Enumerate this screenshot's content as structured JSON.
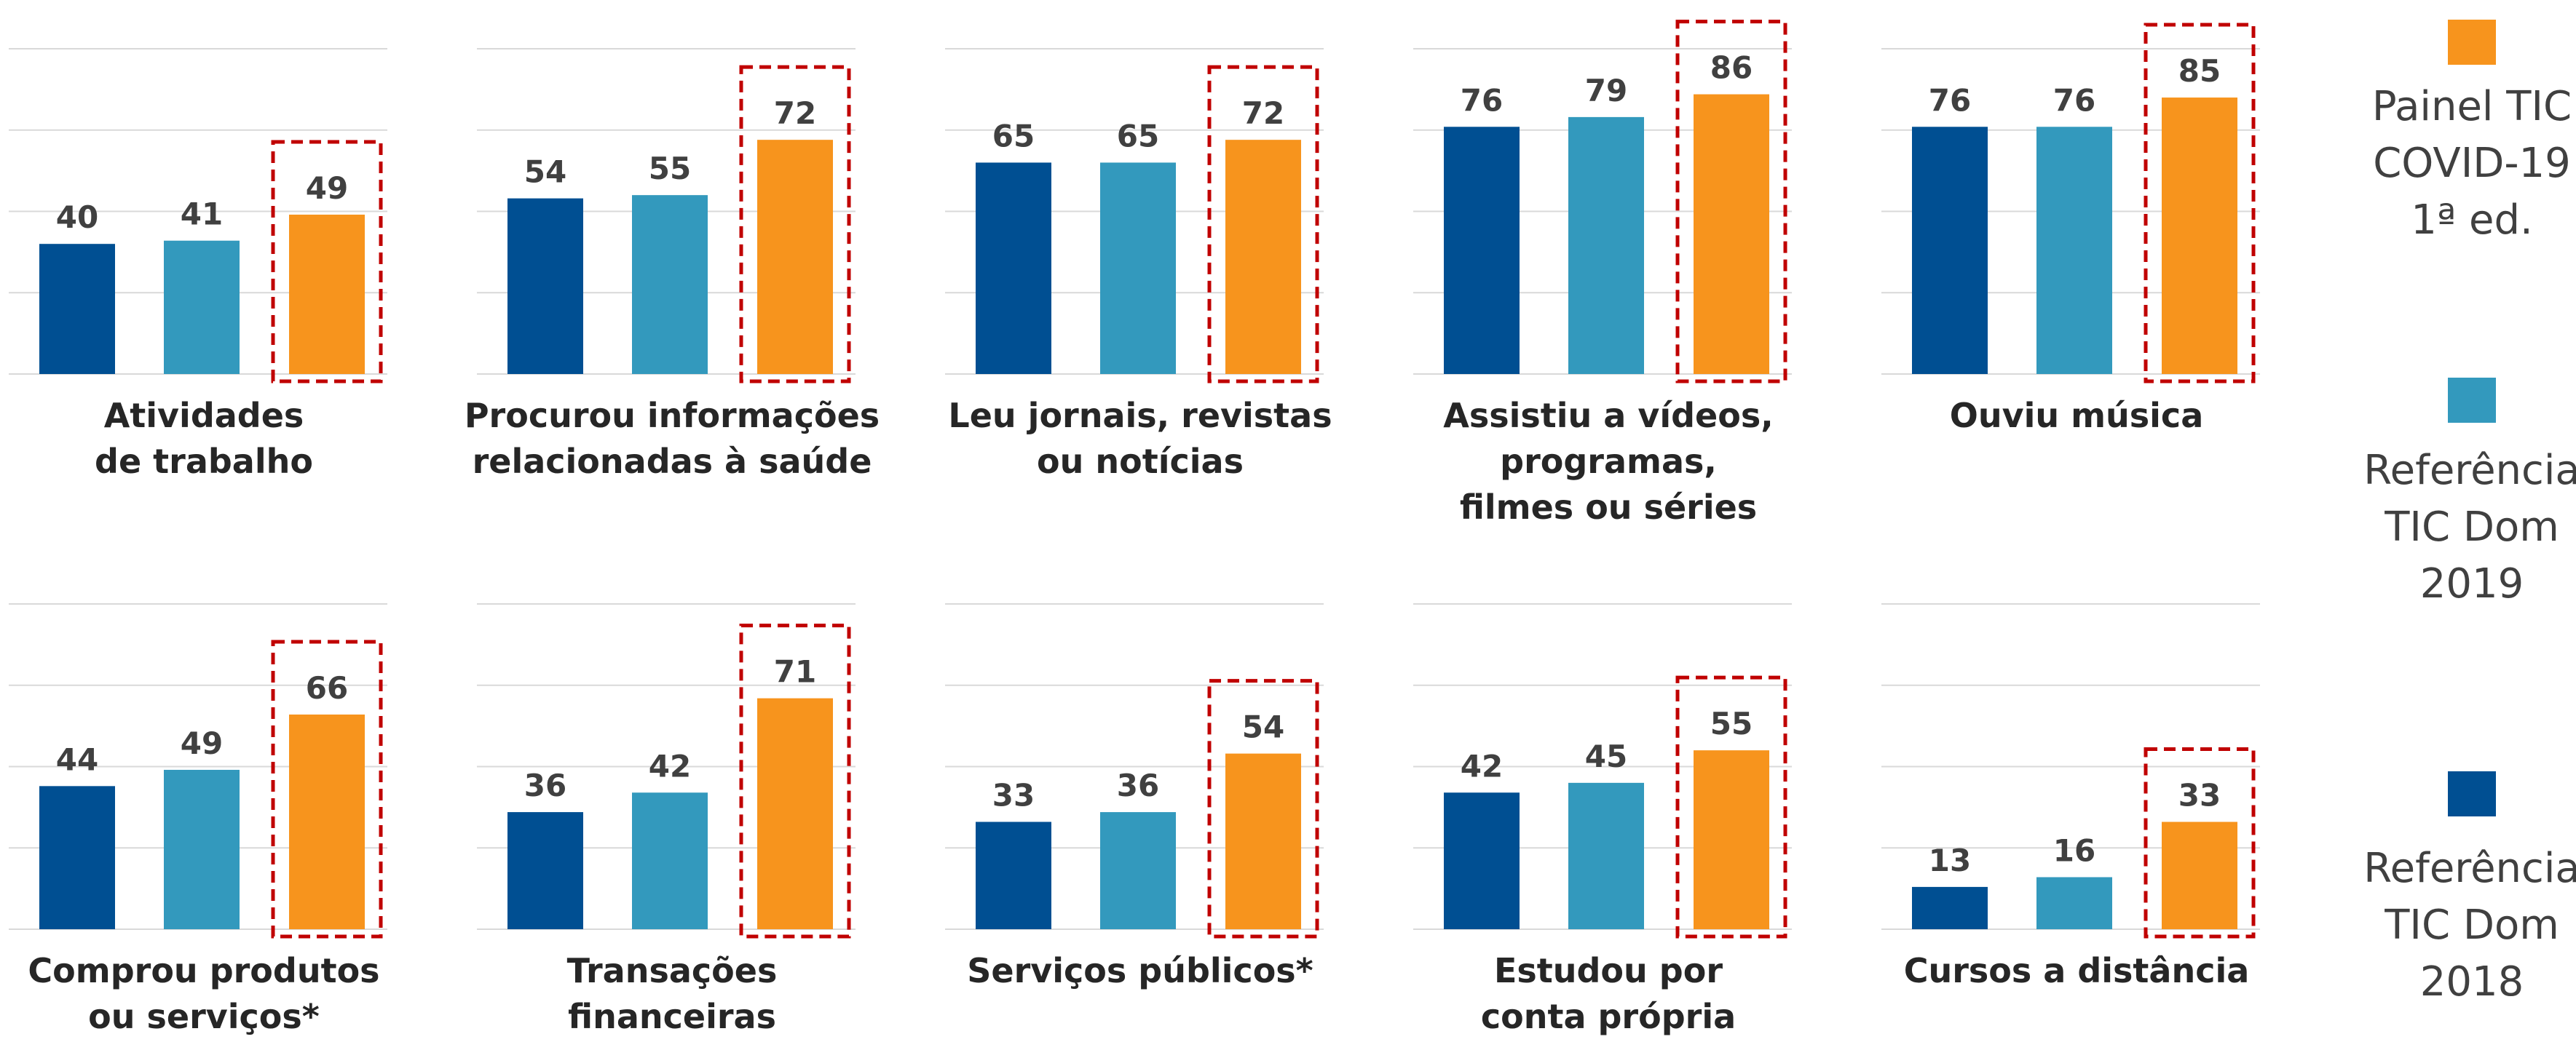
{
  "legend": {
    "items": [
      {
        "name": [
          "Painel TIC",
          "COVID-19",
          "1ª ed."
        ],
        "color": "#f7941d"
      },
      {
        "name": [
          "Referência",
          "TIC Dom",
          "2019"
        ],
        "color": "#3399bd"
      },
      {
        "name": [
          "Referência",
          "TIC Dom",
          "2018"
        ],
        "color": "#004f92"
      }
    ]
  },
  "chart_data": [
    {
      "type": "bar",
      "title": [
        "Atividades",
        "de trabalho"
      ],
      "values": [
        40,
        41,
        49
      ],
      "colors": [
        "#004f92",
        "#3399bd",
        "#f7941d"
      ],
      "highlight": {
        "index": 2,
        "color": "#c00000"
      },
      "ylim": [
        0,
        100
      ],
      "yticks": [
        0,
        25,
        50,
        75,
        100
      ],
      "grid": true
    },
    {
      "type": "bar",
      "title": [
        "Procurou informações",
        "relacionadas à saúde"
      ],
      "values": [
        54,
        55,
        72
      ],
      "colors": [
        "#004f92",
        "#3399bd",
        "#f7941d"
      ],
      "highlight": {
        "index": 2,
        "color": "#c00000"
      },
      "ylim": [
        0,
        100
      ],
      "yticks": [
        0,
        25,
        50,
        75,
        100
      ],
      "grid": true
    },
    {
      "type": "bar",
      "title": [
        "Leu jornais, revistas",
        "ou notícias"
      ],
      "values": [
        65,
        65,
        72
      ],
      "colors": [
        "#004f92",
        "#3399bd",
        "#f7941d"
      ],
      "highlight": {
        "index": 2,
        "color": "#c00000"
      },
      "ylim": [
        0,
        100
      ],
      "yticks": [
        0,
        25,
        50,
        75,
        100
      ],
      "grid": true
    },
    {
      "type": "bar",
      "title": [
        "Assistiu a vídeos,",
        "programas,",
        "filmes ou séries"
      ],
      "values": [
        76,
        79,
        86
      ],
      "colors": [
        "#004f92",
        "#3399bd",
        "#f7941d"
      ],
      "highlight": {
        "index": 2,
        "color": "#c00000"
      },
      "ylim": [
        0,
        100
      ],
      "yticks": [
        0,
        25,
        50,
        75,
        100
      ],
      "grid": true
    },
    {
      "type": "bar",
      "title": [
        "Ouviu música"
      ],
      "values": [
        76,
        76,
        85
      ],
      "colors": [
        "#004f92",
        "#3399bd",
        "#f7941d"
      ],
      "highlight": {
        "index": 2,
        "color": "#c00000"
      },
      "ylim": [
        0,
        100
      ],
      "yticks": [
        0,
        25,
        50,
        75,
        100
      ],
      "grid": true
    },
    {
      "type": "bar",
      "title": [
        "Comprou produtos",
        "ou serviços*"
      ],
      "values": [
        44,
        49,
        66
      ],
      "colors": [
        "#004f92",
        "#3399bd",
        "#f7941d"
      ],
      "highlight": {
        "index": 2,
        "color": "#c00000"
      },
      "ylim": [
        0,
        100
      ],
      "yticks": [
        0,
        25,
        50,
        75,
        100
      ],
      "grid": true
    },
    {
      "type": "bar",
      "title": [
        "Transações",
        "financeiras"
      ],
      "values": [
        36,
        42,
        71
      ],
      "colors": [
        "#004f92",
        "#3399bd",
        "#f7941d"
      ],
      "highlight": {
        "index": 2,
        "color": "#c00000"
      },
      "ylim": [
        0,
        100
      ],
      "yticks": [
        0,
        25,
        50,
        75,
        100
      ],
      "grid": true
    },
    {
      "type": "bar",
      "title": [
        "Serviços públicos*"
      ],
      "values": [
        33,
        36,
        54
      ],
      "colors": [
        "#004f92",
        "#3399bd",
        "#f7941d"
      ],
      "highlight": {
        "index": 2,
        "color": "#c00000"
      },
      "ylim": [
        0,
        100
      ],
      "yticks": [
        0,
        25,
        50,
        75,
        100
      ],
      "grid": true
    },
    {
      "type": "bar",
      "title": [
        "Estudou por",
        "conta própria"
      ],
      "values": [
        42,
        45,
        55
      ],
      "colors": [
        "#004f92",
        "#3399bd",
        "#f7941d"
      ],
      "highlight": {
        "index": 2,
        "color": "#c00000"
      },
      "ylim": [
        0,
        100
      ],
      "yticks": [
        0,
        25,
        50,
        75,
        100
      ],
      "grid": true
    },
    {
      "type": "bar",
      "title": [
        "Cursos a distância"
      ],
      "values": [
        13,
        16,
        33
      ],
      "colors": [
        "#004f92",
        "#3399bd",
        "#f7941d"
      ],
      "highlight": {
        "index": 2,
        "color": "#c00000"
      },
      "ylim": [
        0,
        100
      ],
      "yticks": [
        0,
        25,
        50,
        75,
        100
      ],
      "grid": true
    }
  ]
}
